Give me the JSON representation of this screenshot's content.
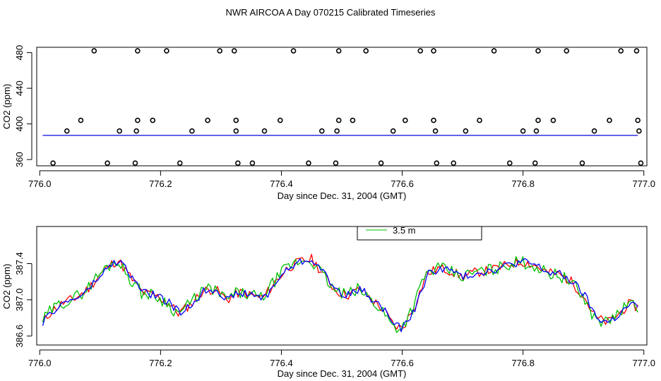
{
  "chart_data": [
    {
      "type": "scatter",
      "title": "NWR AIRCOA A  Day 070215  Calibrated Timeseries",
      "xlabel": "Day since Dec. 31, 2004 (GMT)",
      "ylabel": "CO2 (ppm)",
      "xlim": [
        775.995,
        777.005
      ],
      "ylim": [
        353,
        486
      ],
      "xticks": [
        776.0,
        776.2,
        776.4,
        776.6,
        776.8,
        777.0
      ],
      "xtick_labels": [
        "776.0",
        "776.2",
        "776.4",
        "776.6",
        "776.8",
        "777.0"
      ],
      "yticks": [
        360,
        400,
        440,
        480
      ],
      "ytick_labels": [
        "360",
        "400",
        "440",
        "480"
      ],
      "points": [
        [
          776.09,
          482
        ],
        [
          776.162,
          482
        ],
        [
          776.21,
          482
        ],
        [
          776.298,
          482
        ],
        [
          776.322,
          482
        ],
        [
          776.42,
          482
        ],
        [
          776.495,
          482
        ],
        [
          776.54,
          482
        ],
        [
          776.63,
          482
        ],
        [
          776.652,
          482
        ],
        [
          776.752,
          482
        ],
        [
          776.825,
          482
        ],
        [
          776.872,
          482
        ],
        [
          776.962,
          482
        ],
        [
          776.988,
          482
        ],
        [
          776.068,
          404
        ],
        [
          776.162,
          404
        ],
        [
          776.187,
          404
        ],
        [
          776.278,
          404
        ],
        [
          776.325,
          404
        ],
        [
          776.398,
          404
        ],
        [
          776.495,
          404
        ],
        [
          776.518,
          404
        ],
        [
          776.605,
          404
        ],
        [
          776.652,
          404
        ],
        [
          776.728,
          404
        ],
        [
          776.825,
          404
        ],
        [
          776.85,
          404
        ],
        [
          776.943,
          404
        ],
        [
          776.99,
          404
        ],
        [
          776.045,
          392
        ],
        [
          776.132,
          392
        ],
        [
          776.16,
          392
        ],
        [
          776.252,
          392
        ],
        [
          776.325,
          392
        ],
        [
          776.372,
          392
        ],
        [
          776.467,
          392
        ],
        [
          776.492,
          392
        ],
        [
          776.585,
          392
        ],
        [
          776.655,
          392
        ],
        [
          776.705,
          392
        ],
        [
          776.8,
          392
        ],
        [
          776.822,
          392
        ],
        [
          776.918,
          392
        ],
        [
          776.992,
          392
        ],
        [
          776.022,
          356
        ],
        [
          776.112,
          356
        ],
        [
          776.158,
          356
        ],
        [
          776.232,
          356
        ],
        [
          776.328,
          356
        ],
        [
          776.352,
          356
        ],
        [
          776.445,
          356
        ],
        [
          776.49,
          356
        ],
        [
          776.565,
          356
        ],
        [
          776.657,
          356
        ],
        [
          776.685,
          356
        ],
        [
          776.778,
          356
        ],
        [
          776.82,
          356
        ],
        [
          776.898,
          356
        ],
        [
          776.995,
          356
        ]
      ],
      "series": [
        {
          "name": "red",
          "color": "#ff0000",
          "x": [
            776.005,
            776.99
          ],
          "y": [
            387.1,
            387.1
          ]
        },
        {
          "name": "green",
          "color": "#00c000",
          "x": [
            776.005,
            776.99
          ],
          "y": [
            387.1,
            387.1
          ]
        },
        {
          "name": "blue",
          "color": "#0000ff",
          "x": [
            776.005,
            776.99
          ],
          "y": [
            387.1,
            387.1
          ]
        }
      ]
    },
    {
      "type": "line",
      "title": "",
      "xlabel": "Day since Dec. 31, 2004 (GMT)",
      "ylabel": "CO2 (ppm)",
      "xlim": [
        775.995,
        777.005
      ],
      "ylim": [
        386.5,
        387.81
      ],
      "xticks": [
        776.0,
        776.2,
        776.4,
        776.6,
        776.8,
        777.0
      ],
      "xtick_labels": [
        "776.0",
        "776.2",
        "776.4",
        "776.6",
        "776.8",
        "777.0"
      ],
      "yticks": [
        386.6,
        387.0,
        387.4
      ],
      "ytick_labels": [
        "386.6",
        "387.0",
        "387.4"
      ],
      "legend": {
        "position": "top-center",
        "entries": [
          {
            "label": "3.5 m",
            "color": "#00c000"
          }
        ]
      },
      "base": {
        "x": [
          776.005,
          776.02,
          776.04,
          776.06,
          776.08,
          776.1,
          776.12,
          776.13,
          776.15,
          776.17,
          776.19,
          776.21,
          776.23,
          776.25,
          776.27,
          776.29,
          776.31,
          776.33,
          776.35,
          776.37,
          776.39,
          776.41,
          776.43,
          776.45,
          776.47,
          776.49,
          776.51,
          776.53,
          776.55,
          776.57,
          776.585,
          776.6,
          776.62,
          776.64,
          776.66,
          776.68,
          776.7,
          776.72,
          776.74,
          776.76,
          776.78,
          776.8,
          776.82,
          776.84,
          776.86,
          776.88,
          776.9,
          776.92,
          776.94,
          776.96,
          776.975,
          776.99
        ],
        "y": [
          386.75,
          386.88,
          386.97,
          387.02,
          387.12,
          387.28,
          387.4,
          387.44,
          387.25,
          387.08,
          387.05,
          386.98,
          386.85,
          386.95,
          387.1,
          387.12,
          387.0,
          387.08,
          387.05,
          387.02,
          387.2,
          387.35,
          387.42,
          387.45,
          387.28,
          387.1,
          387.05,
          387.12,
          387.0,
          386.88,
          386.72,
          386.68,
          386.92,
          387.28,
          387.35,
          387.32,
          387.25,
          387.3,
          387.32,
          387.35,
          387.4,
          387.42,
          387.38,
          387.3,
          387.28,
          387.2,
          387.05,
          386.8,
          386.75,
          386.85,
          386.95,
          386.92
        ]
      },
      "series": [
        {
          "name": "red",
          "color": "#ff0000",
          "amp": 0.055,
          "seed": 11,
          "dx": 0.0
        },
        {
          "name": "green",
          "color": "#00c000",
          "amp": 0.07,
          "seed": 29,
          "dx": 0.002
        },
        {
          "name": "blue",
          "color": "#0000ff",
          "amp": 0.045,
          "seed": 47,
          "dx": -0.002
        }
      ]
    }
  ]
}
